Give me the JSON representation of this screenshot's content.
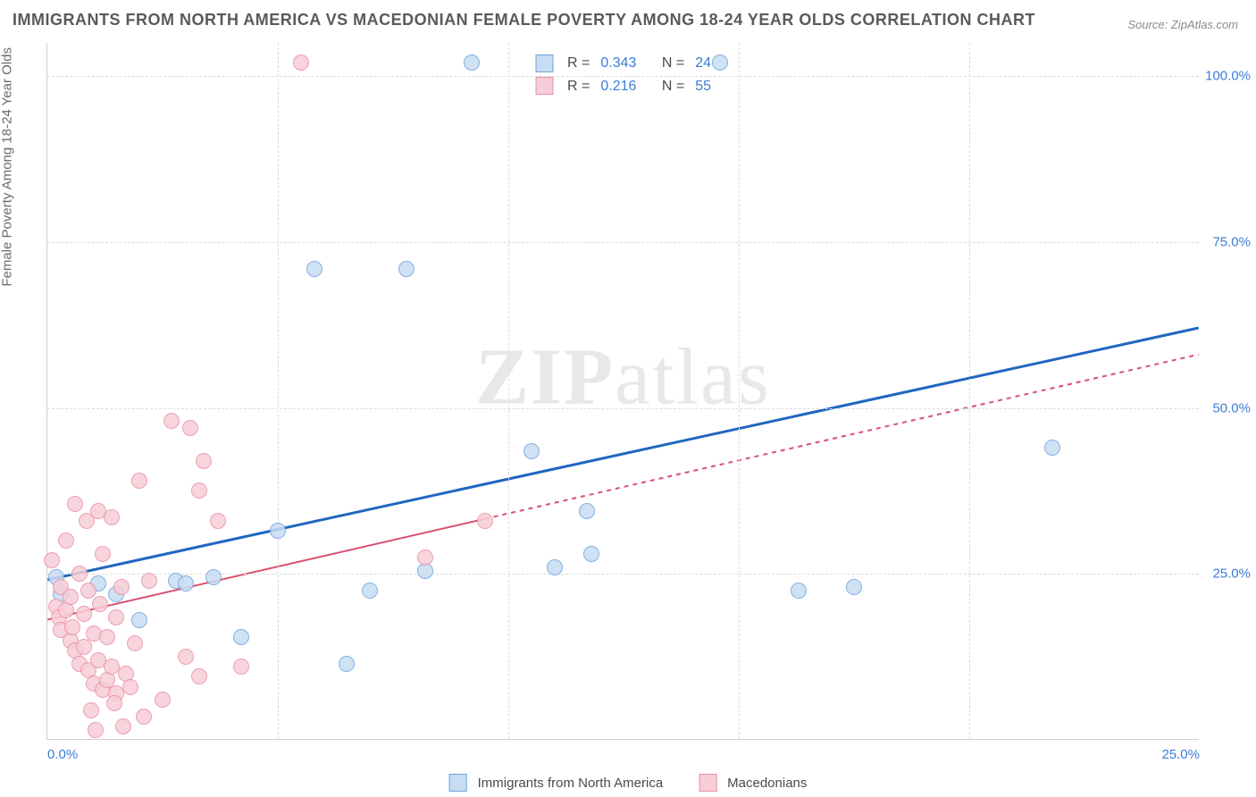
{
  "title": "IMMIGRANTS FROM NORTH AMERICA VS MACEDONIAN FEMALE POVERTY AMONG 18-24 YEAR OLDS CORRELATION CHART",
  "source": "Source: ZipAtlas.com",
  "y_axis_label": "Female Poverty Among 18-24 Year Olds",
  "watermark_bold": "ZIP",
  "watermark_light": "atlas",
  "chart": {
    "type": "scatter",
    "background_color": "#ffffff",
    "grid_color": "#dcdcdc",
    "axis_color": "#d0d0d0",
    "tick_label_color": "#3b7dd8",
    "xlim": [
      0,
      25
    ],
    "ylim": [
      0,
      105
    ],
    "y_ticks": [
      25,
      50,
      75,
      100
    ],
    "y_tick_labels": [
      "25.0%",
      "50.0%",
      "75.0%",
      "100.0%"
    ],
    "x_ticks": [
      0,
      25
    ],
    "x_tick_labels": [
      "0.0%",
      "25.0%"
    ],
    "x_minor_ticks": [
      5,
      10,
      15,
      20
    ],
    "marker_radius": 9,
    "marker_stroke_width": 1.5,
    "series": [
      {
        "name": "Immigrants from North America",
        "fill": "#c7ddf3",
        "stroke": "#6fa3db",
        "r_value": "0.343",
        "n_value": "24",
        "points": [
          [
            0.2,
            24.5
          ],
          [
            0.3,
            22.0
          ],
          [
            1.1,
            23.5
          ],
          [
            1.5,
            22.0
          ],
          [
            2.0,
            18.0
          ],
          [
            2.8,
            24.0
          ],
          [
            3.0,
            23.5
          ],
          [
            3.6,
            24.5
          ],
          [
            4.2,
            15.5
          ],
          [
            5.0,
            31.5
          ],
          [
            5.8,
            71.0
          ],
          [
            6.5,
            11.5
          ],
          [
            7.0,
            22.5
          ],
          [
            7.8,
            71.0
          ],
          [
            8.2,
            25.5
          ],
          [
            10.5,
            43.5
          ],
          [
            11.0,
            26.0
          ],
          [
            11.7,
            34.5
          ],
          [
            11.8,
            28.0
          ],
          [
            16.3,
            22.5
          ],
          [
            17.5,
            23.0
          ],
          [
            21.8,
            44.0
          ],
          [
            9.2,
            102.0
          ],
          [
            14.6,
            102.0
          ]
        ],
        "trend": {
          "x1": 0.0,
          "y1": 24.0,
          "x2": 25.0,
          "y2": 62.0,
          "color": "#1f66c1",
          "width": 3,
          "dash": "none",
          "solid_until_x": 25.0
        }
      },
      {
        "name": "Macedonians",
        "fill": "#f7cdd8",
        "stroke": "#e98fa8",
        "r_value": "0.216",
        "n_value": "55",
        "points": [
          [
            0.1,
            27.0
          ],
          [
            0.2,
            20.0
          ],
          [
            0.25,
            18.5
          ],
          [
            0.3,
            23.0
          ],
          [
            0.3,
            16.5
          ],
          [
            0.4,
            30.0
          ],
          [
            0.4,
            19.5
          ],
          [
            0.5,
            15.0
          ],
          [
            0.5,
            21.5
          ],
          [
            0.55,
            17.0
          ],
          [
            0.6,
            13.5
          ],
          [
            0.6,
            35.5
          ],
          [
            0.7,
            25.0
          ],
          [
            0.7,
            11.5
          ],
          [
            0.8,
            19.0
          ],
          [
            0.8,
            14.0
          ],
          [
            0.85,
            33.0
          ],
          [
            0.9,
            10.5
          ],
          [
            0.9,
            22.5
          ],
          [
            1.0,
            8.5
          ],
          [
            1.0,
            16.0
          ],
          [
            1.1,
            34.5
          ],
          [
            1.1,
            12.0
          ],
          [
            1.15,
            20.5
          ],
          [
            1.2,
            7.5
          ],
          [
            1.2,
            28.0
          ],
          [
            1.3,
            9.0
          ],
          [
            1.3,
            15.5
          ],
          [
            1.4,
            33.5
          ],
          [
            1.4,
            11.0
          ],
          [
            1.5,
            18.5
          ],
          [
            1.5,
            7.0
          ],
          [
            1.6,
            23.0
          ],
          [
            1.7,
            10.0
          ],
          [
            1.8,
            8.0
          ],
          [
            1.9,
            14.5
          ],
          [
            2.0,
            39.0
          ],
          [
            2.2,
            24.0
          ],
          [
            2.5,
            6.0
          ],
          [
            2.7,
            48.0
          ],
          [
            3.0,
            12.5
          ],
          [
            3.1,
            47.0
          ],
          [
            3.3,
            9.5
          ],
          [
            3.3,
            37.5
          ],
          [
            3.4,
            42.0
          ],
          [
            3.7,
            33.0
          ],
          [
            4.2,
            11.0
          ],
          [
            5.5,
            102.0
          ],
          [
            8.2,
            27.5
          ],
          [
            9.5,
            33.0
          ],
          [
            1.05,
            1.5
          ],
          [
            1.65,
            2.0
          ],
          [
            2.1,
            3.5
          ],
          [
            0.95,
            4.5
          ],
          [
            1.45,
            5.5
          ]
        ],
        "trend": {
          "x1": 0.0,
          "y1": 18.0,
          "x2": 25.0,
          "y2": 58.0,
          "color": "#d94f6f",
          "width": 2,
          "dash": "5,5",
          "solid_until_x": 9.5
        }
      }
    ]
  },
  "stats_labels": {
    "r_prefix": "R =",
    "n_prefix": "N ="
  },
  "legend": {
    "series1": "Immigrants from North America",
    "series2": "Macedonians"
  }
}
